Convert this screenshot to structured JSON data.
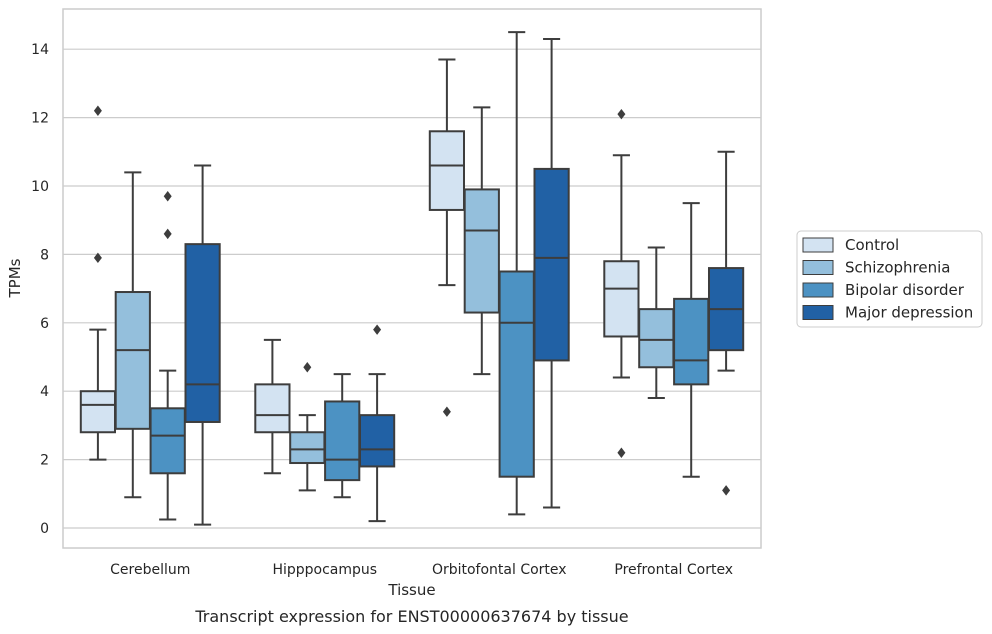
{
  "chart_data": {
    "type": "boxplot",
    "title": "Transcript expression for ENST00000637674 by tissue",
    "xlabel": "Tissue",
    "ylabel": "TPMs",
    "ylim": [
      -0.6,
      15.2
    ],
    "yticks": [
      0,
      2,
      4,
      6,
      8,
      10,
      12,
      14
    ],
    "grid": "horizontal",
    "legend_position": "right",
    "categories": [
      "Cerebellum",
      "Hipppocampus",
      "Orbitofontal Cortex",
      "Prefrontal Cortex"
    ],
    "series": [
      {
        "name": "Control",
        "color": "#d3e3f2",
        "boxes": [
          {
            "whislo": 2.0,
            "q1": 2.8,
            "med": 3.6,
            "q3": 4.0,
            "whishi": 5.8,
            "fliers": [
              7.9,
              12.2
            ]
          },
          {
            "whislo": 1.6,
            "q1": 2.8,
            "med": 3.3,
            "q3": 4.2,
            "whishi": 5.5,
            "fliers": []
          },
          {
            "whislo": 7.1,
            "q1": 9.3,
            "med": 10.6,
            "q3": 11.6,
            "whishi": 13.7,
            "fliers": [
              3.4
            ]
          },
          {
            "whislo": 4.4,
            "q1": 5.6,
            "med": 7.0,
            "q3": 7.8,
            "whishi": 10.9,
            "fliers": [
              2.2,
              12.1
            ]
          }
        ]
      },
      {
        "name": "Schizophrenia",
        "color": "#94bfdc",
        "boxes": [
          {
            "whislo": 0.9,
            "q1": 2.9,
            "med": 5.2,
            "q3": 6.9,
            "whishi": 10.4,
            "fliers": []
          },
          {
            "whislo": 1.1,
            "q1": 1.9,
            "med": 2.3,
            "q3": 2.8,
            "whishi": 3.3,
            "fliers": [
              4.7
            ]
          },
          {
            "whislo": 4.5,
            "q1": 6.3,
            "med": 8.7,
            "q3": 9.9,
            "whishi": 12.3,
            "fliers": []
          },
          {
            "whislo": 3.8,
            "q1": 4.7,
            "med": 5.5,
            "q3": 6.4,
            "whishi": 8.2,
            "fliers": []
          }
        ]
      },
      {
        "name": "Bipolar disorder",
        "color": "#4c92c3",
        "boxes": [
          {
            "whislo": 0.25,
            "q1": 1.6,
            "med": 2.7,
            "q3": 3.5,
            "whishi": 4.6,
            "fliers": [
              8.6,
              9.7
            ]
          },
          {
            "whislo": 0.9,
            "q1": 1.4,
            "med": 2.0,
            "q3": 3.7,
            "whishi": 4.5,
            "fliers": []
          },
          {
            "whislo": 0.4,
            "q1": 1.5,
            "med": 6.0,
            "q3": 7.5,
            "whishi": 14.5,
            "fliers": []
          },
          {
            "whislo": 1.5,
            "q1": 4.2,
            "med": 4.9,
            "q3": 6.7,
            "whishi": 9.5,
            "fliers": []
          }
        ]
      },
      {
        "name": "Major depression",
        "color": "#2161a5",
        "boxes": [
          {
            "whislo": 0.1,
            "q1": 3.1,
            "med": 4.2,
            "q3": 8.3,
            "whishi": 10.6,
            "fliers": []
          },
          {
            "whislo": 0.2,
            "q1": 1.8,
            "med": 2.3,
            "q3": 3.3,
            "whishi": 4.5,
            "fliers": [
              5.8
            ]
          },
          {
            "whislo": 0.6,
            "q1": 4.9,
            "med": 7.9,
            "q3": 10.5,
            "whishi": 14.3,
            "fliers": []
          },
          {
            "whislo": 4.6,
            "q1": 5.2,
            "med": 6.4,
            "q3": 7.6,
            "whishi": 11.0,
            "fliers": [
              1.1
            ]
          }
        ]
      }
    ]
  }
}
